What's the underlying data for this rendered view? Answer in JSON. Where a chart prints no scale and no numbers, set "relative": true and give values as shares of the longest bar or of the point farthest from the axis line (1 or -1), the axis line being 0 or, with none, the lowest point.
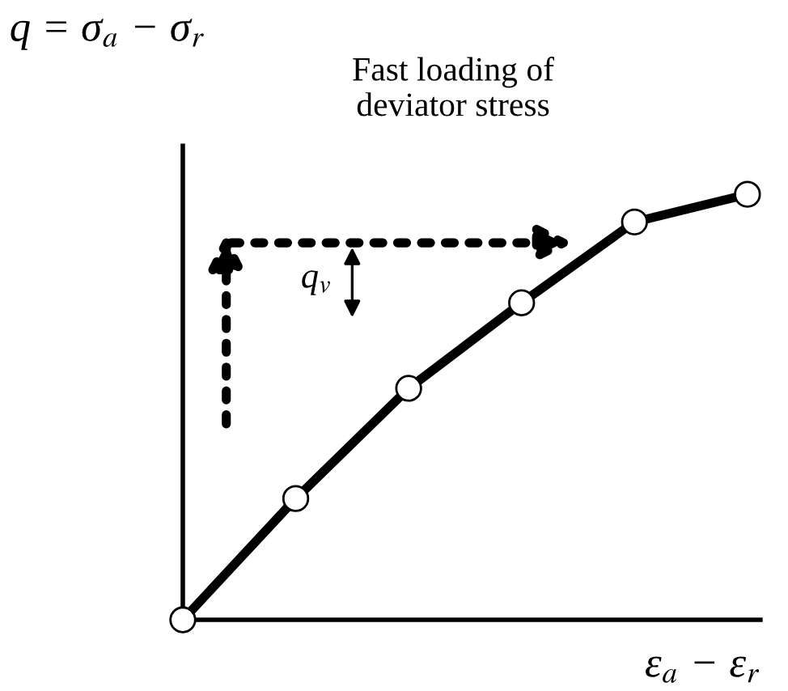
{
  "chart_data": {
    "type": "line",
    "relative": true,
    "marker": "circle",
    "line_style": "solid",
    "ylabel": "q = σ$_{a}$ − σ$_{r}$",
    "xlabel": "ε$_{a}$ − ε$_{r}$",
    "annotations": [
      "Fast loading of\ndeviator stress",
      "q$_{v}$"
    ],
    "categories": [
      null,
      null,
      null,
      null,
      null,
      null
    ],
    "series": [
      {
        "color": "#000000",
        "values": [
          0,
          0.285,
          0.544,
          0.745,
          0.935,
          1
        ]
      }
    ]
  }
}
